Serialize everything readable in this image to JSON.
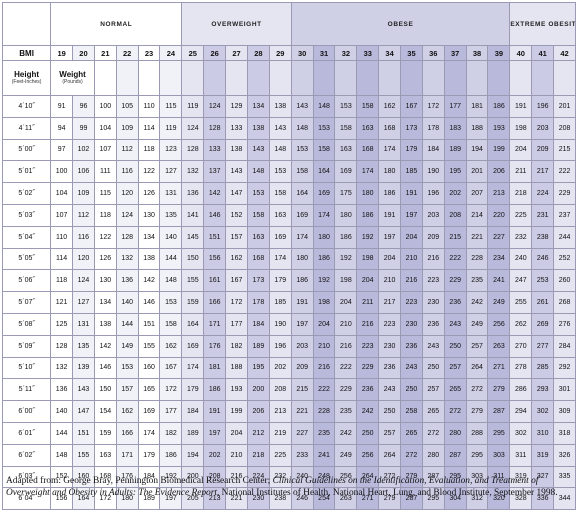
{
  "categories": [
    {
      "key": "normal",
      "label": "NORMAL",
      "span": 6,
      "bmi": [
        "19",
        "20",
        "21",
        "22",
        "23",
        "24"
      ]
    },
    {
      "key": "over",
      "label": "OVERWEIGHT",
      "span": 5,
      "bmi": [
        "25",
        "26",
        "27",
        "28",
        "29"
      ]
    },
    {
      "key": "obese",
      "label": "OBESE",
      "span": 10,
      "bmi": [
        "30",
        "31",
        "32",
        "33",
        "34",
        "35",
        "36",
        "37",
        "38",
        "39"
      ]
    },
    {
      "key": "extreme",
      "label": "EXTREME OBESITY",
      "span": 3,
      "bmi": [
        "40",
        "41",
        "42"
      ]
    }
  ],
  "headers": {
    "bmi": "BMI",
    "height": "Height",
    "height_unit": "(Feet-Inches)",
    "weight": "Weight",
    "weight_unit": "(Pounds)"
  },
  "rows": [
    {
      "height": "4´10˝",
      "weights": [
        "91",
        "96",
        "100",
        "105",
        "110",
        "115",
        "119",
        "124",
        "129",
        "134",
        "138",
        "143",
        "148",
        "153",
        "158",
        "162",
        "167",
        "172",
        "177",
        "181",
        "186",
        "191",
        "196",
        "201"
      ]
    },
    {
      "height": "4´11˝",
      "weights": [
        "94",
        "99",
        "104",
        "109",
        "114",
        "119",
        "124",
        "128",
        "133",
        "138",
        "143",
        "148",
        "153",
        "158",
        "163",
        "168",
        "173",
        "178",
        "183",
        "188",
        "193",
        "198",
        "203",
        "208"
      ]
    },
    {
      "height": "5´00˝",
      "weights": [
        "97",
        "102",
        "107",
        "112",
        "118",
        "123",
        "128",
        "133",
        "138",
        "143",
        "148",
        "153",
        "158",
        "163",
        "168",
        "174",
        "179",
        "184",
        "189",
        "194",
        "199",
        "204",
        "209",
        "215"
      ]
    },
    {
      "height": "5´01˝",
      "weights": [
        "100",
        "106",
        "111",
        "116",
        "122",
        "127",
        "132",
        "137",
        "143",
        "148",
        "153",
        "158",
        "164",
        "169",
        "174",
        "180",
        "185",
        "190",
        "195",
        "201",
        "206",
        "211",
        "217",
        "222"
      ]
    },
    {
      "height": "5´02˝",
      "weights": [
        "104",
        "109",
        "115",
        "120",
        "126",
        "131",
        "136",
        "142",
        "147",
        "153",
        "158",
        "164",
        "169",
        "175",
        "180",
        "186",
        "191",
        "196",
        "202",
        "207",
        "213",
        "218",
        "224",
        "229"
      ]
    },
    {
      "height": "5´03˝",
      "weights": [
        "107",
        "112",
        "118",
        "124",
        "130",
        "135",
        "141",
        "146",
        "152",
        "158",
        "163",
        "169",
        "174",
        "180",
        "186",
        "191",
        "197",
        "203",
        "208",
        "214",
        "220",
        "225",
        "231",
        "237"
      ]
    },
    {
      "height": "5´04˝",
      "weights": [
        "110",
        "116",
        "122",
        "128",
        "134",
        "140",
        "145",
        "151",
        "157",
        "163",
        "169",
        "174",
        "180",
        "186",
        "192",
        "197",
        "204",
        "209",
        "215",
        "221",
        "227",
        "232",
        "238",
        "244"
      ]
    },
    {
      "height": "5´05˝",
      "weights": [
        "114",
        "120",
        "126",
        "132",
        "138",
        "144",
        "150",
        "156",
        "162",
        "168",
        "174",
        "180",
        "186",
        "192",
        "198",
        "204",
        "210",
        "216",
        "222",
        "228",
        "234",
        "240",
        "246",
        "252"
      ]
    },
    {
      "height": "5´06˝",
      "weights": [
        "118",
        "124",
        "130",
        "136",
        "142",
        "148",
        "155",
        "161",
        "167",
        "173",
        "179",
        "186",
        "192",
        "198",
        "204",
        "210",
        "216",
        "223",
        "229",
        "235",
        "241",
        "247",
        "253",
        "260"
      ]
    },
    {
      "height": "5´07˝",
      "weights": [
        "121",
        "127",
        "134",
        "140",
        "146",
        "153",
        "159",
        "166",
        "172",
        "178",
        "185",
        "191",
        "198",
        "204",
        "211",
        "217",
        "223",
        "230",
        "236",
        "242",
        "249",
        "255",
        "261",
        "268"
      ]
    },
    {
      "height": "5´08˝",
      "weights": [
        "125",
        "131",
        "138",
        "144",
        "151",
        "158",
        "164",
        "171",
        "177",
        "184",
        "190",
        "197",
        "204",
        "210",
        "216",
        "223",
        "230",
        "236",
        "243",
        "249",
        "256",
        "262",
        "269",
        "276"
      ]
    },
    {
      "height": "5´09˝",
      "weights": [
        "128",
        "135",
        "142",
        "149",
        "155",
        "162",
        "169",
        "176",
        "182",
        "189",
        "196",
        "203",
        "210",
        "216",
        "223",
        "230",
        "236",
        "243",
        "250",
        "257",
        "263",
        "270",
        "277",
        "284"
      ]
    },
    {
      "height": "5´10˝",
      "weights": [
        "132",
        "139",
        "146",
        "153",
        "160",
        "167",
        "174",
        "181",
        "188",
        "195",
        "202",
        "209",
        "216",
        "222",
        "229",
        "236",
        "243",
        "250",
        "257",
        "264",
        "271",
        "278",
        "285",
        "292"
      ]
    },
    {
      "height": "5´11˝",
      "weights": [
        "136",
        "143",
        "150",
        "157",
        "165",
        "172",
        "179",
        "186",
        "193",
        "200",
        "208",
        "215",
        "222",
        "229",
        "236",
        "243",
        "250",
        "257",
        "265",
        "272",
        "279",
        "286",
        "293",
        "301"
      ]
    },
    {
      "height": "6´00˝",
      "weights": [
        "140",
        "147",
        "154",
        "162",
        "169",
        "177",
        "184",
        "191",
        "199",
        "206",
        "213",
        "221",
        "228",
        "235",
        "242",
        "250",
        "258",
        "265",
        "272",
        "279",
        "287",
        "294",
        "302",
        "309"
      ]
    },
    {
      "height": "6´01˝",
      "weights": [
        "144",
        "151",
        "159",
        "166",
        "174",
        "182",
        "189",
        "197",
        "204",
        "212",
        "219",
        "227",
        "235",
        "242",
        "250",
        "257",
        "265",
        "272",
        "280",
        "288",
        "295",
        "302",
        "310",
        "318"
      ]
    },
    {
      "height": "6´02˝",
      "weights": [
        "148",
        "155",
        "163",
        "171",
        "179",
        "186",
        "194",
        "202",
        "210",
        "218",
        "225",
        "233",
        "241",
        "249",
        "256",
        "264",
        "272",
        "280",
        "287",
        "295",
        "303",
        "311",
        "319",
        "326"
      ]
    },
    {
      "height": "6´03˝",
      "weights": [
        "152",
        "160",
        "168",
        "176",
        "184",
        "192",
        "200",
        "208",
        "216",
        "224",
        "232",
        "240",
        "248",
        "256",
        "264",
        "272",
        "279",
        "287",
        "295",
        "303",
        "311",
        "319",
        "327",
        "335"
      ]
    },
    {
      "height": "6´04˝",
      "weights": [
        "156",
        "164",
        "172",
        "180",
        "189",
        "197",
        "205",
        "213",
        "221",
        "230",
        "238",
        "246",
        "254",
        "263",
        "271",
        "279",
        "287",
        "295",
        "304",
        "312",
        "320",
        "328",
        "336",
        "344"
      ]
    }
  ],
  "source": {
    "prefix": "Adapted from: George Bray, Pennington Biomedical Research Center; ",
    "italic": "Clinical Guidelines on the Identification, Evaluation, and Treatment of Overweight and Obesity in Adults: The Evidence Report",
    "suffix": ", National Institutes of Health, National Heart, Lung, and Blood Institute, September 1998."
  },
  "colors": {
    "normal": "#ffffff",
    "overweight": "#e5e5f2",
    "obese": "#cfcfe6",
    "extreme": "#e5e5f2",
    "border": "#9a9ab4"
  }
}
